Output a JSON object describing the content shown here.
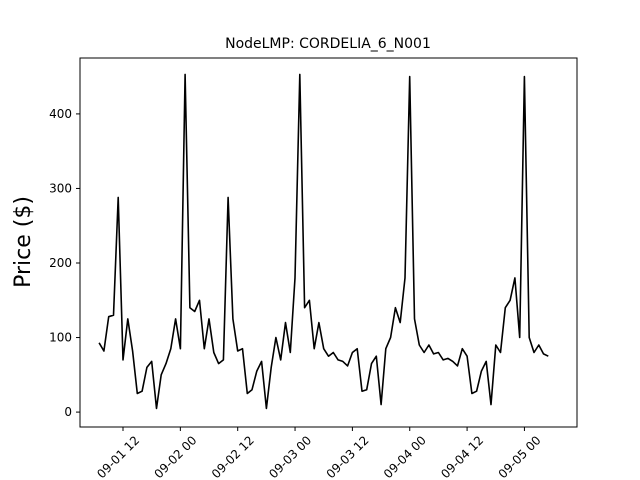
{
  "chart_data": {
    "type": "line",
    "title": "NodeLMP: CORDELIA_6_N001",
    "ylabel": "Price ($)",
    "x": [
      "09-01 07",
      "09-01 08",
      "09-01 09",
      "09-01 10",
      "09-01 11",
      "09-01 12",
      "09-01 13",
      "09-01 14",
      "09-01 15",
      "09-01 16",
      "09-01 17",
      "09-01 18",
      "09-01 19",
      "09-01 20",
      "09-01 21",
      "09-01 22",
      "09-01 23",
      "09-02 00",
      "09-02 01",
      "09-02 02",
      "09-02 03",
      "09-02 04",
      "09-02 05",
      "09-02 06",
      "09-02 07",
      "09-02 08",
      "09-02 09",
      "09-02 10",
      "09-02 11",
      "09-02 12",
      "09-02 13",
      "09-02 14",
      "09-02 15",
      "09-02 16",
      "09-02 17",
      "09-02 18",
      "09-02 19",
      "09-02 20",
      "09-02 21",
      "09-02 22",
      "09-02 23",
      "09-03 00",
      "09-03 01",
      "09-03 02",
      "09-03 03",
      "09-03 04",
      "09-03 05",
      "09-03 06",
      "09-03 07",
      "09-03 08",
      "09-03 09",
      "09-03 10",
      "09-03 11",
      "09-03 12",
      "09-03 13",
      "09-03 14",
      "09-03 15",
      "09-03 16",
      "09-03 17",
      "09-03 18",
      "09-03 19",
      "09-03 20",
      "09-03 21",
      "09-03 22",
      "09-03 23",
      "09-04 00",
      "09-04 01",
      "09-04 02",
      "09-04 03",
      "09-04 04",
      "09-04 05",
      "09-04 06",
      "09-04 07",
      "09-04 08",
      "09-04 09",
      "09-04 10",
      "09-04 11",
      "09-04 12",
      "09-04 13",
      "09-04 14",
      "09-04 15",
      "09-04 16",
      "09-04 17",
      "09-04 18",
      "09-04 19",
      "09-04 20",
      "09-04 21",
      "09-04 22",
      "09-04 23",
      "09-05 00",
      "09-05 01",
      "09-05 02",
      "09-05 03",
      "09-05 04",
      "09-05 05"
    ],
    "series": [
      {
        "name": "CORDELIA_6_N001",
        "color": "#000000",
        "values": [
          93,
          82,
          128,
          130,
          288,
          70,
          125,
          82,
          25,
          28,
          60,
          68,
          5,
          50,
          65,
          85,
          125,
          85,
          453,
          140,
          135,
          150,
          85,
          125,
          80,
          65,
          70,
          288,
          125,
          82,
          85,
          25,
          30,
          55,
          68,
          5,
          60,
          100,
          70,
          120,
          80,
          180,
          453,
          140,
          150,
          85,
          120,
          85,
          75,
          80,
          70,
          68,
          62,
          80,
          85,
          28,
          30,
          65,
          75,
          10,
          85,
          100,
          140,
          120,
          180,
          450,
          125,
          90,
          80,
          90,
          78,
          80,
          70,
          72,
          68,
          62,
          85,
          75,
          25,
          28,
          55,
          68,
          10,
          90,
          80,
          140,
          150,
          180,
          100,
          450,
          100,
          80,
          90,
          78,
          75
        ]
      }
    ],
    "xlim": [
      "09-01 03",
      "09-05 11"
    ],
    "xticks": [
      "09-01 12",
      "09-02 00",
      "09-02 12",
      "09-03 00",
      "09-03 12",
      "09-04 00",
      "09-04 12",
      "09-05 00"
    ],
    "ylim": [
      -20,
      475
    ],
    "yticks": [
      0,
      100,
      200,
      300,
      400
    ]
  }
}
